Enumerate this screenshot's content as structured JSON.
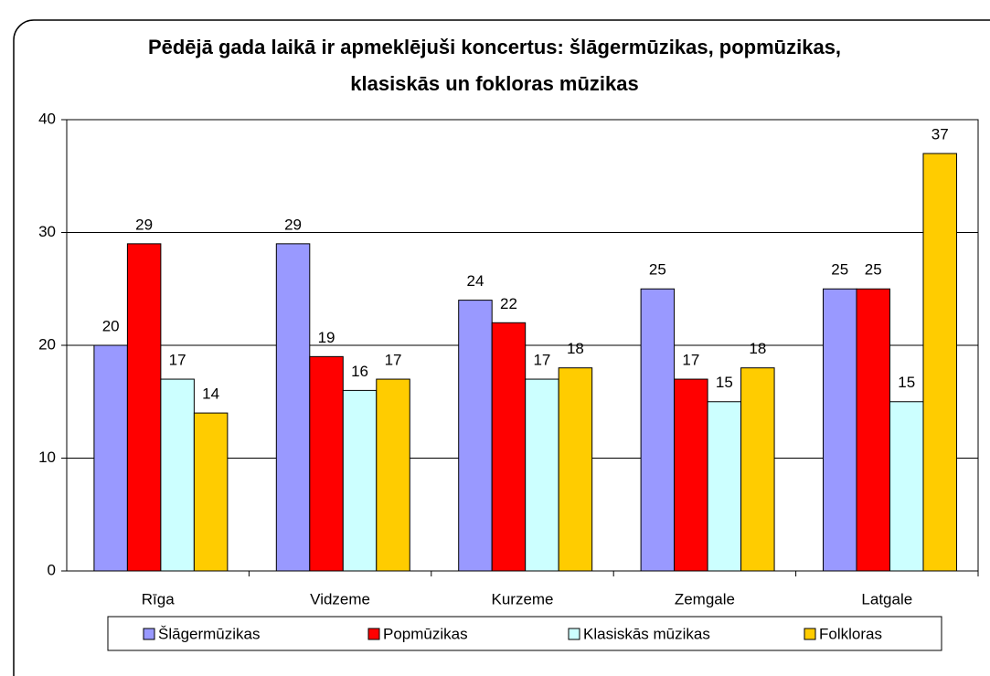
{
  "chart_data": {
    "type": "bar",
    "title": "Pēdējā gada laikā ir apmeklējuši koncertus: šlāgermūzikas, popmūzikas, klasiskās un fokloras mūzikas",
    "categories": [
      "Rīga",
      "Vidzeme",
      "Kurzeme",
      "Zemgale",
      "Latgale"
    ],
    "series": [
      {
        "name": "Šlāgermūzikas",
        "color": "#9999ff",
        "values": [
          20,
          29,
          24,
          25,
          25
        ]
      },
      {
        "name": "Popmūzikas",
        "color": "#ff0000",
        "values": [
          29,
          19,
          22,
          17,
          25
        ]
      },
      {
        "name": "Klasiskās mūzikas",
        "color": "#ccffff",
        "values": [
          17,
          16,
          17,
          15,
          15
        ]
      },
      {
        "name": "Folkloras",
        "color": "#ffcc00",
        "values": [
          14,
          17,
          18,
          18,
          37
        ]
      }
    ],
    "ylim": [
      0,
      40
    ],
    "yticks": [
      0,
      10,
      20,
      30,
      40
    ],
    "grid": true,
    "legend": "bottom"
  }
}
